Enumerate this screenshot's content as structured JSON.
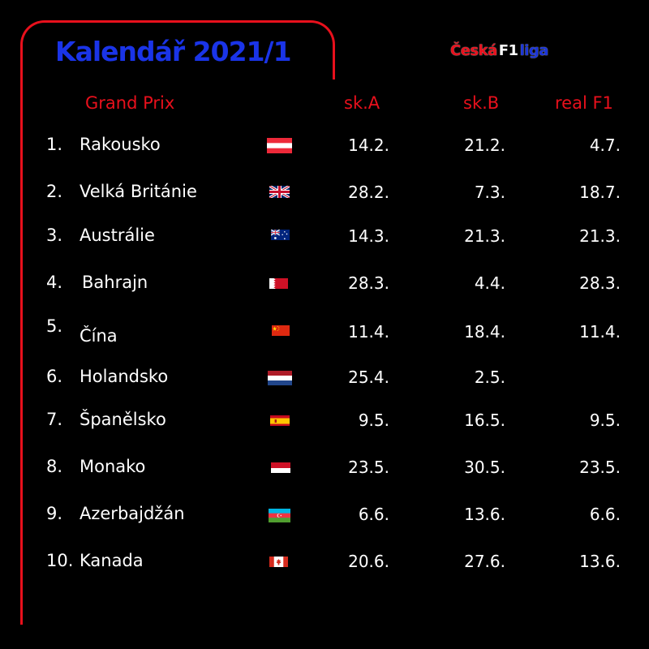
{
  "header": {
    "title": "Kalendář 2021/1",
    "title_color": "#1a34e8",
    "accent_color": "#e8101c",
    "logo": {
      "part1": "Česká",
      "part2": "F1",
      "part3": "liga"
    }
  },
  "columns": {
    "grand_prix": "Grand Prix",
    "group_a": "sk.A",
    "group_b": "sk.B",
    "real_f1": "real F1"
  },
  "races": [
    {
      "num": "1.",
      "name": "Rakousko",
      "flag": "austria-flag",
      "sk_a": "14.2.",
      "sk_b": "21.2.",
      "real_f1": "4.7."
    },
    {
      "num": "2.",
      "name": "Velká Británie",
      "flag": "uk-flag",
      "sk_a": "28.2.",
      "sk_b": "7.3.",
      "real_f1": "18.7."
    },
    {
      "num": "3.",
      "name": "Austrálie",
      "flag": "australia-flag",
      "sk_a": "14.3.",
      "sk_b": "21.3.",
      "real_f1": "21.3."
    },
    {
      "num": "4.",
      "name": "Bahrajn",
      "flag": "bahrain-flag",
      "sk_a": "28.3.",
      "sk_b": "4.4.",
      "real_f1": "28.3."
    },
    {
      "num": "5.",
      "name": "Čína",
      "flag": "china-flag",
      "sk_a": "11.4.",
      "sk_b": "18.4.",
      "real_f1": "11.4."
    },
    {
      "num": "6.",
      "name": "Holandsko",
      "flag": "netherlands-flag",
      "sk_a": "25.4.",
      "sk_b": "2.5.",
      "real_f1": ""
    },
    {
      "num": "7.",
      "name": "Španělsko",
      "flag": "spain-flag",
      "sk_a": "9.5.",
      "sk_b": "16.5.",
      "real_f1": "9.5."
    },
    {
      "num": "8.",
      "name": "Monako",
      "flag": "monaco-flag",
      "sk_a": "23.5.",
      "sk_b": "30.5.",
      "real_f1": "23.5."
    },
    {
      "num": "9.",
      "name": "Azerbajdžán",
      "flag": "azerbaijan-flag",
      "sk_a": "6.6.",
      "sk_b": "13.6.",
      "real_f1": "6.6."
    },
    {
      "num": "10.",
      "name": "Kanada",
      "flag": "canada-flag",
      "sk_a": "20.6.",
      "sk_b": "27.6.",
      "real_f1": "13.6."
    }
  ]
}
